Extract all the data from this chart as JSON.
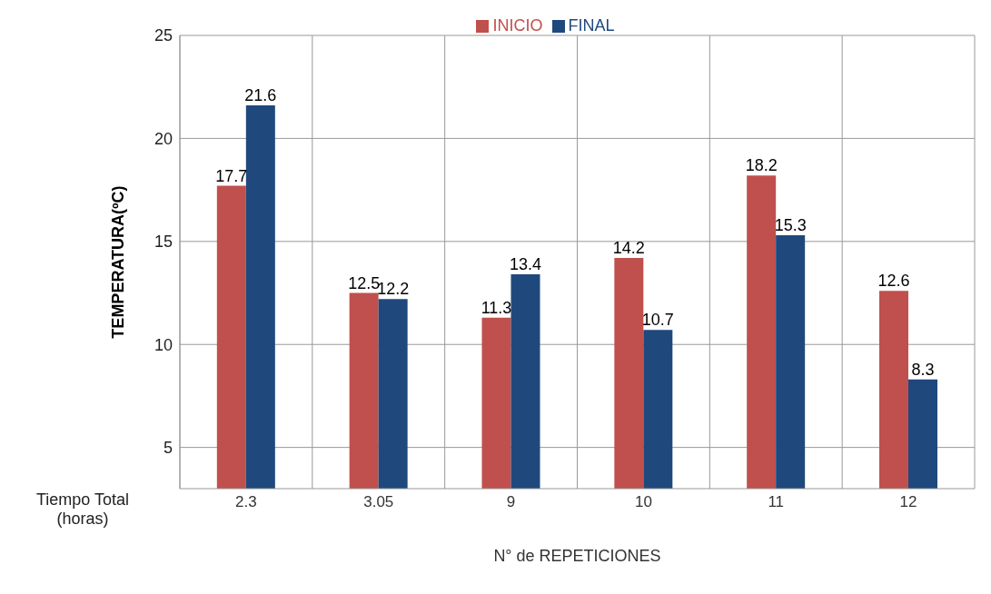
{
  "chart_data": {
    "type": "bar",
    "categories": [
      "2.3",
      "3.05",
      "9",
      "10",
      "11",
      "12"
    ],
    "series": [
      {
        "name": "INICIO",
        "color": "#c0504d",
        "values": [
          17.7,
          12.5,
          11.3,
          14.2,
          18.2,
          12.6
        ]
      },
      {
        "name": "FINAL",
        "color": "#1f497d",
        "values": [
          21.6,
          12.2,
          13.4,
          10.7,
          15.3,
          8.3
        ]
      }
    ],
    "ylabel": "TEMPERATURA(ºC)",
    "xlabel": "N° de REPETICIONES",
    "annotations": [
      "Tiempo Total (horas)"
    ],
    "ylim": [
      3,
      25
    ],
    "yticks": [
      5,
      10,
      15,
      20,
      25
    ],
    "grid": true,
    "legend": "top",
    "data_labels": true
  }
}
